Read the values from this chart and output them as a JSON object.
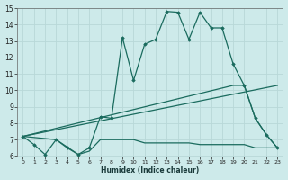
{
  "xlabel": "Humidex (Indice chaleur)",
  "xlim": [
    -0.5,
    23.5
  ],
  "ylim": [
    6,
    15
  ],
  "bg_color": "#cdeaea",
  "line_color": "#1a6b5e",
  "grid_color": "#b8d8d8",
  "lines": [
    {
      "x": [
        0,
        1,
        2,
        3,
        4,
        5,
        6,
        7,
        8,
        9,
        10,
        11,
        12,
        13,
        14,
        15,
        16,
        17,
        18,
        19,
        20,
        21,
        22,
        23
      ],
      "y": [
        7.2,
        6.7,
        6.1,
        7.0,
        6.5,
        6.1,
        6.5,
        8.4,
        8.3,
        13.2,
        10.6,
        12.8,
        13.1,
        14.8,
        14.75,
        13.1,
        14.75,
        13.8,
        13.8,
        11.6,
        10.3,
        8.3,
        7.3,
        6.5
      ],
      "with_markers": true
    },
    {
      "x": [
        0,
        3,
        5,
        6,
        7,
        8,
        9,
        10,
        11,
        12,
        13,
        14,
        15,
        16,
        17,
        18,
        19,
        20,
        21,
        22,
        23
      ],
      "y": [
        7.2,
        7.0,
        6.1,
        6.3,
        7.0,
        7.0,
        7.0,
        7.0,
        6.8,
        6.8,
        6.8,
        6.8,
        6.8,
        6.7,
        6.7,
        6.7,
        6.7,
        6.7,
        6.5,
        6.5,
        6.5
      ],
      "with_markers": false
    },
    {
      "x": [
        0,
        23
      ],
      "y": [
        7.2,
        10.3
      ],
      "with_markers": false
    },
    {
      "x": [
        0,
        19,
        20,
        21,
        22,
        23
      ],
      "y": [
        7.2,
        10.3,
        10.3,
        8.3,
        7.3,
        6.5
      ],
      "with_markers": false
    }
  ]
}
